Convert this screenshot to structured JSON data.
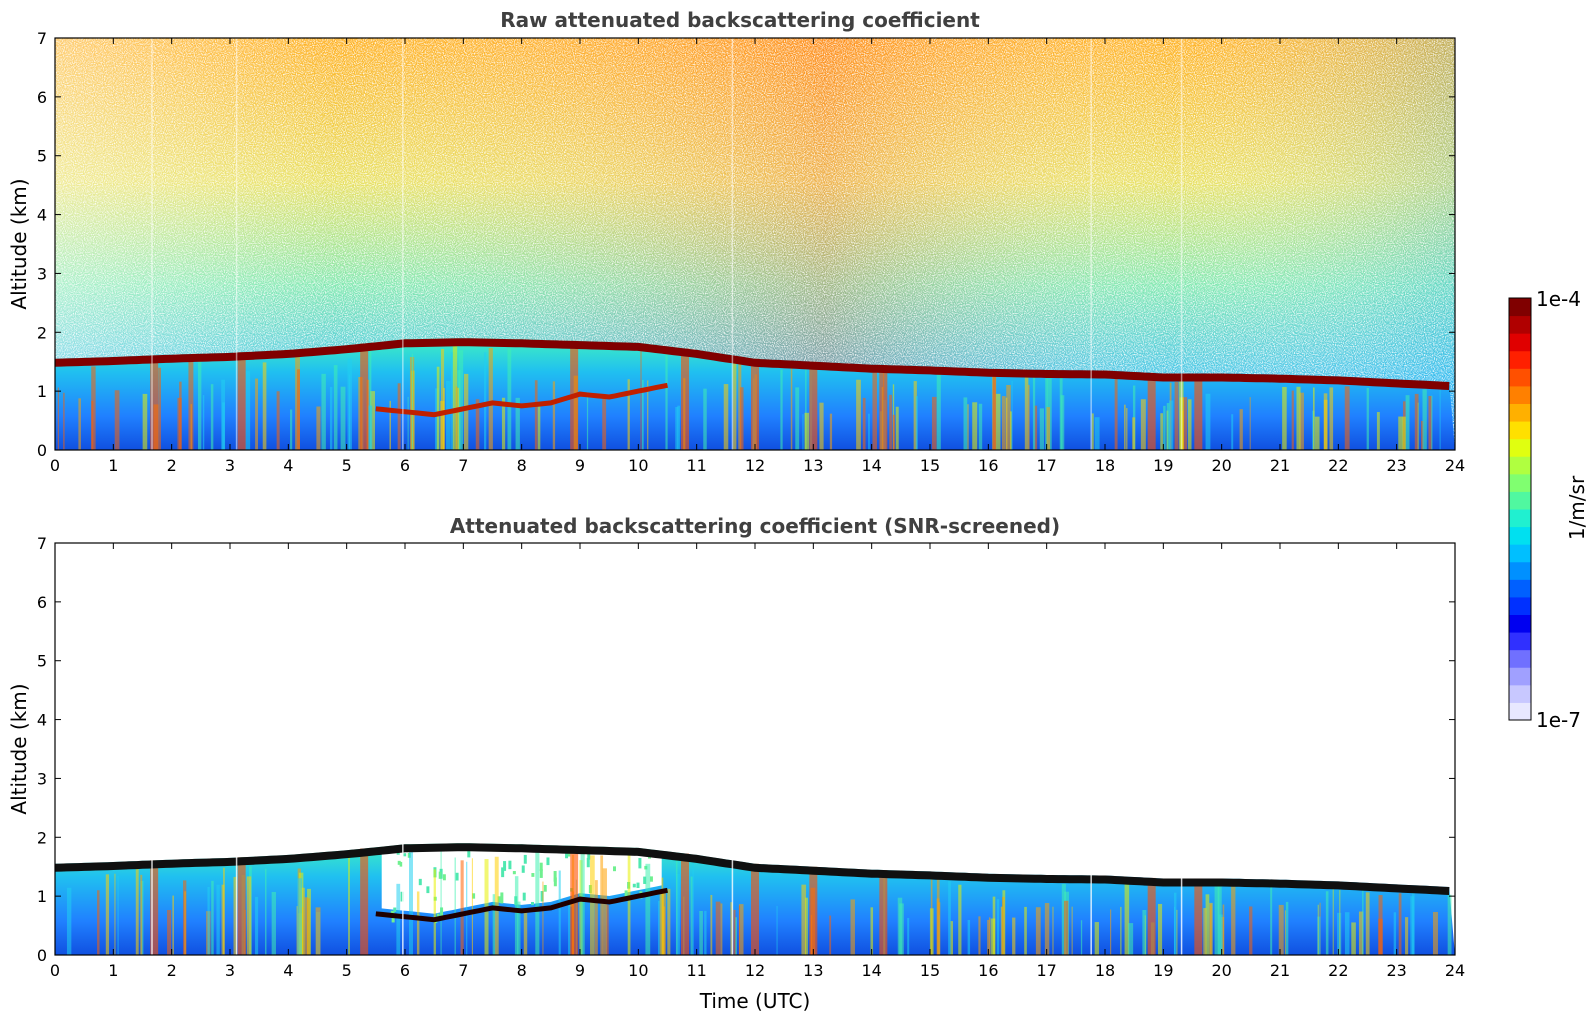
{
  "chart_data": [
    {
      "type": "heatmap",
      "title": "Raw attenuated backscattering coefficient",
      "xlabel": "",
      "ylabel": "Altitude (km)",
      "xlim": [
        0,
        24
      ],
      "ylim": [
        0,
        7
      ],
      "xticks": [
        "0",
        "1",
        "2",
        "3",
        "4",
        "5",
        "6",
        "7",
        "8",
        "9",
        "10",
        "11",
        "12",
        "13",
        "14",
        "15",
        "16",
        "17",
        "18",
        "19",
        "20",
        "21",
        "22",
        "23",
        "24"
      ],
      "yticks": [
        "0",
        "1",
        "2",
        "3",
        "4",
        "5",
        "6",
        "7"
      ],
      "colormap": "jet",
      "colorbar_range": [
        "1e-7",
        "1e-4"
      ],
      "layer_top_km": [
        [
          0,
          1.55
        ],
        [
          1,
          1.58
        ],
        [
          2,
          1.62
        ],
        [
          3,
          1.65
        ],
        [
          4,
          1.7
        ],
        [
          5,
          1.78
        ],
        [
          6,
          1.88
        ],
        [
          7,
          1.9
        ],
        [
          8,
          1.88
        ],
        [
          9,
          1.85
        ],
        [
          10,
          1.82
        ],
        [
          11,
          1.7
        ],
        [
          12,
          1.55
        ],
        [
          13,
          1.5
        ],
        [
          14,
          1.45
        ],
        [
          15,
          1.42
        ],
        [
          16,
          1.38
        ],
        [
          17,
          1.36
        ],
        [
          18,
          1.35
        ],
        [
          19,
          1.3
        ],
        [
          20,
          1.3
        ],
        [
          21,
          1.28
        ],
        [
          22,
          1.25
        ],
        [
          23,
          1.2
        ],
        [
          24,
          1.15
        ]
      ],
      "lower_layer_km": [
        [
          5.5,
          0.7
        ],
        [
          6,
          0.65
        ],
        [
          6.5,
          0.6
        ],
        [
          7,
          0.7
        ],
        [
          7.5,
          0.8
        ],
        [
          8,
          0.75
        ],
        [
          8.5,
          0.8
        ],
        [
          9,
          0.95
        ],
        [
          9.5,
          0.9
        ],
        [
          10,
          1.0
        ],
        [
          10.5,
          1.1
        ]
      ]
    },
    {
      "type": "heatmap",
      "title": "Attenuated backscattering coefficient (SNR-screened)",
      "xlabel": "Time (UTC)",
      "ylabel": "Altitude (km)",
      "xlim": [
        0,
        24
      ],
      "ylim": [
        0,
        7
      ],
      "xticks": [
        "0",
        "1",
        "2",
        "3",
        "4",
        "5",
        "6",
        "7",
        "8",
        "9",
        "10",
        "11",
        "12",
        "13",
        "14",
        "15",
        "16",
        "17",
        "18",
        "19",
        "20",
        "21",
        "22",
        "23",
        "24"
      ],
      "yticks": [
        "0",
        "1",
        "2",
        "3",
        "4",
        "5",
        "6",
        "7"
      ],
      "colormap": "jet",
      "colorbar_range": [
        "1e-7",
        "1e-4"
      ]
    }
  ],
  "colorbar": {
    "top_label": "1e-4",
    "bottom_label": "1e-7",
    "unit_label": "1/m/sr",
    "colors": [
      "#e8e8ff",
      "#c8c8ff",
      "#a0a0ff",
      "#7070ff",
      "#3030ff",
      "#0000f0",
      "#0030ff",
      "#0060ff",
      "#0090ff",
      "#00bfff",
      "#00e0f0",
      "#20f0d0",
      "#50f8a0",
      "#80ff70",
      "#b0ff40",
      "#e0ff10",
      "#ffe000",
      "#ffb000",
      "#ff8000",
      "#ff5000",
      "#ff2000",
      "#e00000",
      "#b00000",
      "#800000"
    ]
  }
}
